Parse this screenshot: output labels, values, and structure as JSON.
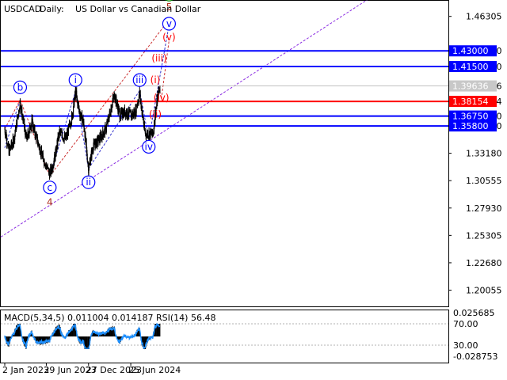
{
  "header": {
    "symbol": "USDCAD",
    "timeframe": "Daily:",
    "description": "US Dollar vs Canadian Dollar"
  },
  "chart_data": {
    "type": "candlestick",
    "price_axis": {
      "ticks": [
        "1.46305",
        "1.43000",
        "1.41500",
        "1.39636",
        "1.38154",
        "1.36750",
        "1.35800",
        "1.33180",
        "1.30555",
        "1.27930",
        "1.25305",
        "1.22680",
        "1.20055"
      ],
      "range": [
        1.185,
        1.478
      ]
    },
    "time_axis": {
      "labels": [
        "2 Jan 2023",
        "29 Jun 2023",
        "27 Dec 2023",
        "25 Jun 2024"
      ],
      "start": "2023-01-02",
      "end": "2024-10-28"
    },
    "current_price": "1.39636",
    "levels": [
      {
        "price": 1.43,
        "label": "1.43000",
        "color": "#0000ff"
      },
      {
        "price": 1.415,
        "label": "1.41500",
        "color": "#0000ff"
      },
      {
        "price": 1.38154,
        "label": "1.38154",
        "color": "#ff0000"
      },
      {
        "price": 1.3675,
        "label": "1.36750",
        "color": "#0000ff"
      },
      {
        "price": 1.358,
        "label": "1.35800",
        "color": "#0000ff"
      }
    ],
    "price_series": [
      {
        "date": "2023-01-02",
        "price": 1.355
      },
      {
        "date": "2023-01-20",
        "price": 1.334
      },
      {
        "date": "2023-02-10",
        "price": 1.345
      },
      {
        "date": "2023-03-09",
        "price": 1.38
      },
      {
        "date": "2023-04-05",
        "price": 1.345
      },
      {
        "date": "2023-04-28",
        "price": 1.362
      },
      {
        "date": "2023-05-20",
        "price": 1.345
      },
      {
        "date": "2023-06-10",
        "price": 1.33
      },
      {
        "date": "2023-07-14",
        "price": 1.312
      },
      {
        "date": "2023-08-01",
        "price": 1.325
      },
      {
        "date": "2023-08-25",
        "price": 1.352
      },
      {
        "date": "2023-09-20",
        "price": 1.345
      },
      {
        "date": "2023-10-15",
        "price": 1.365
      },
      {
        "date": "2023-11-01",
        "price": 1.39
      },
      {
        "date": "2023-11-20",
        "price": 1.37
      },
      {
        "date": "2023-12-05",
        "price": 1.362
      },
      {
        "date": "2023-12-27",
        "price": 1.317
      },
      {
        "date": "2024-01-15",
        "price": 1.338
      },
      {
        "date": "2024-02-10",
        "price": 1.345
      },
      {
        "date": "2024-03-10",
        "price": 1.355
      },
      {
        "date": "2024-04-16",
        "price": 1.388
      },
      {
        "date": "2024-05-10",
        "price": 1.368
      },
      {
        "date": "2024-06-01",
        "price": 1.372
      },
      {
        "date": "2024-06-25",
        "price": 1.368
      },
      {
        "date": "2024-07-15",
        "price": 1.372
      },
      {
        "date": "2024-08-02",
        "price": 1.389
      },
      {
        "date": "2024-08-25",
        "price": 1.35
      },
      {
        "date": "2024-09-10",
        "price": 1.351
      },
      {
        "date": "2024-09-28",
        "price": 1.35
      },
      {
        "date": "2024-10-08",
        "price": 1.37
      },
      {
        "date": "2024-10-18",
        "price": 1.385
      },
      {
        "date": "2024-10-24",
        "price": 1.392
      },
      {
        "date": "2024-10-28",
        "price": 1.396
      }
    ],
    "wave_labels": [
      {
        "text": "b",
        "date": "2023-03-09",
        "price": 1.395,
        "color": "#0000ff",
        "circled": true
      },
      {
        "text": "c",
        "date": "2023-07-14",
        "price": 1.299,
        "color": "#0000ff",
        "circled": true
      },
      {
        "text": "4",
        "date": "2023-07-14",
        "price": 1.285,
        "color": "#b03020",
        "circled": false
      },
      {
        "text": "i",
        "date": "2023-11-01",
        "price": 1.402,
        "color": "#0000ff",
        "circled": true
      },
      {
        "text": "ii",
        "date": "2023-12-27",
        "price": 1.304,
        "color": "#0000ff",
        "circled": true
      },
      {
        "text": "iii",
        "date": "2024-08-02",
        "price": 1.402,
        "color": "#0000ff",
        "circled": true
      },
      {
        "text": "iv",
        "date": "2024-09-10",
        "price": 1.338,
        "color": "#0000ff",
        "circled": true
      },
      {
        "text": "(i)",
        "date": "2024-10-08",
        "price": 1.402,
        "color": "#ff0000",
        "circled": false
      },
      {
        "text": "(ii)",
        "date": "2024-10-08",
        "price": 1.369,
        "color": "#ff0000",
        "circled": false
      },
      {
        "text": "(iii)",
        "date": "2024-10-25",
        "price": 1.423,
        "color": "#ff0000",
        "circled": false
      },
      {
        "text": "(iv)",
        "date": "2024-11-03",
        "price": 1.385,
        "color": "#ff0000",
        "circled": false
      },
      {
        "text": "(v)",
        "date": "2024-12-06",
        "price": 1.443,
        "color": "#ff0000",
        "circled": false
      },
      {
        "text": "v",
        "date": "2024-12-06",
        "price": 1.456,
        "color": "#0000ff",
        "circled": true
      },
      {
        "text": "5",
        "date": "2024-12-06",
        "price": 1.472,
        "color": "#b03020",
        "circled": false
      },
      {
        "text": "(1)",
        "date": "2024-12-06",
        "price": 1.484,
        "color": "#008000",
        "circled": true
      }
    ],
    "indicator": {
      "header": "MACD(5,34,5) 0.011004 0.014187 RSI(14) 56.48",
      "ticks": [
        "0.025685",
        "70.00",
        "30.00",
        "-0.028753"
      ]
    }
  }
}
